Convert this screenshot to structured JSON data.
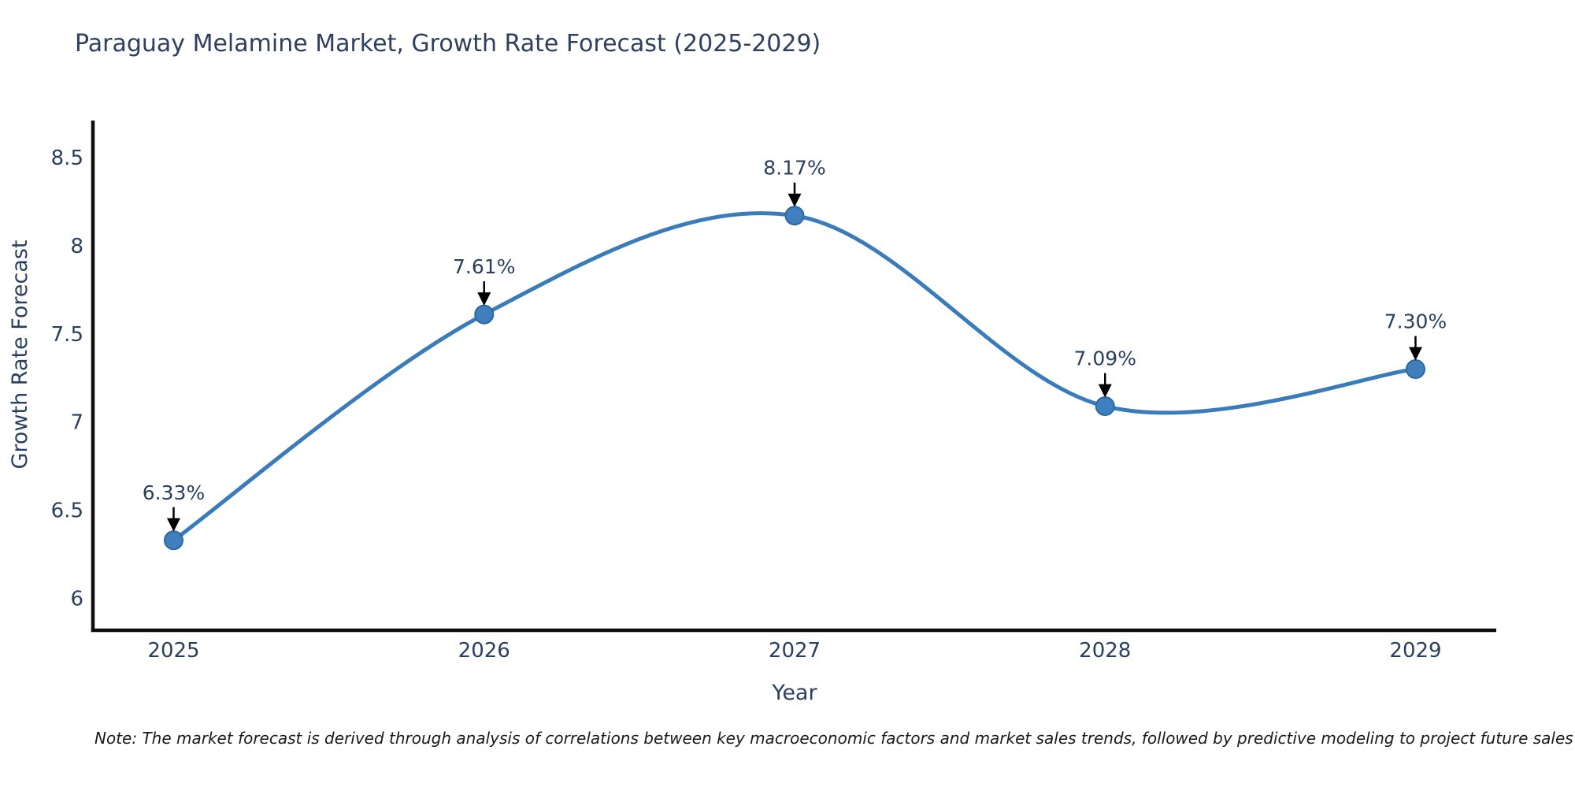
{
  "header": {
    "title": "Paraguay Melamine Market, Growth Rate Forecast (2025-2029)"
  },
  "chart_data": {
    "type": "line",
    "title": "Paraguay Melamine Market, Growth Rate Forecast (2025-2029)",
    "xlabel": "Year",
    "ylabel": "Growth Rate Forecast",
    "x": [
      2025,
      2026,
      2027,
      2028,
      2029
    ],
    "values": [
      6.33,
      7.61,
      8.17,
      7.09,
      7.3
    ],
    "point_labels": [
      "6.33%",
      "7.61%",
      "8.17%",
      "7.09%",
      "7.30%"
    ],
    "x_tick_labels": [
      "2025",
      "2026",
      "2027",
      "2028",
      "2029"
    ],
    "yticks": [
      6,
      6.5,
      7,
      7.5,
      8,
      8.5
    ],
    "ytick_labels": [
      "6",
      "6.5",
      "7",
      "7.5",
      "8",
      "8.5"
    ],
    "ylim": [
      5.82,
      8.7
    ],
    "xlim": [
      2024.74,
      2029.26
    ],
    "grid": false,
    "legend": "none",
    "line_shape": "spline",
    "marker": "circle",
    "annotation_arrows": true,
    "colors": {
      "line": "#3a7cba",
      "marker_fill": "#3f7fbd",
      "marker_edge": "#2c699f",
      "arrow": "#000000",
      "axis": "#0d0d0d",
      "text": "#2a3f5f",
      "title_text": "#2e3f5f",
      "note_text": "#1a1a1a",
      "background": "#ffffff"
    }
  },
  "footer": {
    "note": "Note: The market forecast is derived through analysis of correlations between key macroeconomic factors and market sales trends, followed by predictive modeling to project future sales"
  }
}
